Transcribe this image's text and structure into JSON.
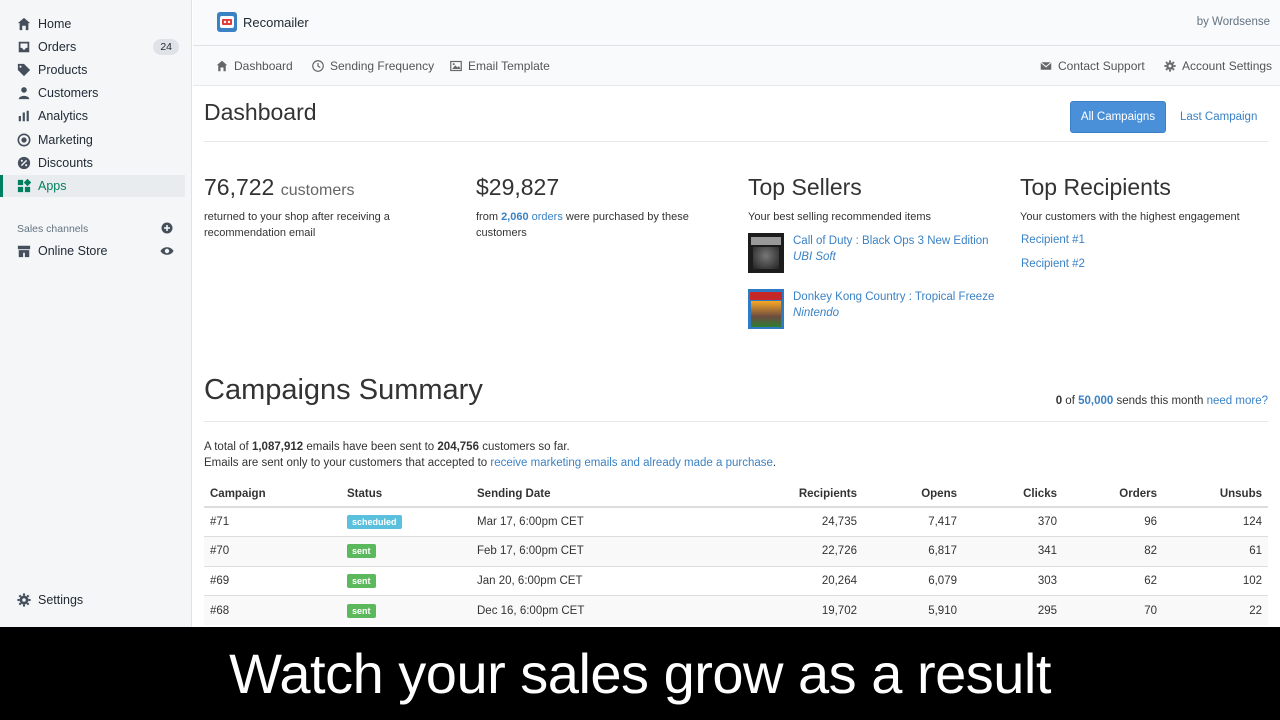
{
  "sidebar": {
    "items": [
      {
        "label": "Home"
      },
      {
        "label": "Orders",
        "count": "24"
      },
      {
        "label": "Products"
      },
      {
        "label": "Customers"
      },
      {
        "label": "Analytics"
      },
      {
        "label": "Marketing"
      },
      {
        "label": "Discounts"
      },
      {
        "label": "Apps"
      }
    ],
    "sales_channels_title": "Sales channels",
    "online_store": "Online Store",
    "settings": "Settings"
  },
  "app": {
    "name": "Recomailer",
    "by": "by Wordsense"
  },
  "app_nav": {
    "dashboard": "Dashboard",
    "sending_frequency": "Sending Frequency",
    "email_template": "Email Template",
    "contact_support": "Contact Support",
    "account_settings": "Account Settings"
  },
  "dashboard": {
    "title": "Dashboard",
    "all_campaigns": "All Campaigns",
    "last_campaign": "Last Campaign",
    "customers_value": "76,722",
    "customers_unit": "customers",
    "customers_desc_1": "returned to your shop after receiving a",
    "customers_desc_2": "recommendation email",
    "revenue_value": "$29,827",
    "revenue_from": "from",
    "orders_count": "2,060",
    "orders_word": "orders",
    "revenue_desc_rest": "were purchased by these",
    "revenue_desc_2": "customers",
    "top_sellers_title": "Top Sellers",
    "top_sellers_desc": "Your best selling recommended items",
    "top_sellers": [
      {
        "title": "Call of Duty : Black Ops 3 New Edition",
        "brand": "UBI Soft"
      },
      {
        "title": "Donkey Kong Country : Tropical Freeze",
        "brand": "Nintendo"
      }
    ],
    "top_recipients_title": "Top Recipients",
    "top_recipients_desc": "Your customers with the highest engagement",
    "recipients": [
      "Recipient #1",
      "Recipient #2"
    ]
  },
  "campaigns": {
    "title": "Campaigns Summary",
    "sends_used": "0",
    "sends_of": "of",
    "sends_limit": "50,000",
    "sends_rest": "sends this month",
    "need_more": "need more?",
    "total_prefix": "A total of",
    "total_emails": "1,087,912",
    "total_mid": "emails have been sent to",
    "total_customers": "204,756",
    "total_suffix": "customers so far.",
    "note_prefix": "Emails are sent only to your customers that accepted to",
    "note_link": "receive marketing emails and already made a purchase",
    "note_suffix": ".",
    "headers": [
      "Campaign",
      "Status",
      "Sending Date",
      "Recipients",
      "Opens",
      "Clicks",
      "Orders",
      "Unsubs"
    ],
    "rows": [
      {
        "campaign": "#71",
        "status": "scheduled",
        "date": "Mar 17, 6:00pm CET",
        "recipients": "24,735",
        "opens": "7,417",
        "clicks": "370",
        "orders": "96",
        "unsubs": "124"
      },
      {
        "campaign": "#70",
        "status": "sent",
        "date": "Feb 17, 6:00pm CET",
        "recipients": "22,726",
        "opens": "6,817",
        "clicks": "341",
        "orders": "82",
        "unsubs": "61"
      },
      {
        "campaign": "#69",
        "status": "sent",
        "date": "Jan 20, 6:00pm CET",
        "recipients": "20,264",
        "opens": "6,079",
        "clicks": "303",
        "orders": "62",
        "unsubs": "102"
      },
      {
        "campaign": "#68",
        "status": "sent",
        "date": "Dec 16, 6:00pm CET",
        "recipients": "19,702",
        "opens": "5,910",
        "clicks": "295",
        "orders": "70",
        "unsubs": "22"
      }
    ],
    "status_colors": {
      "scheduled": "#5bc0de",
      "sent": "#5cb85c"
    }
  },
  "caption": "Watch your sales grow as a result",
  "colors": {
    "primary": "#4a90d9",
    "link": "#3b82c4",
    "accent_green": "#008060"
  }
}
